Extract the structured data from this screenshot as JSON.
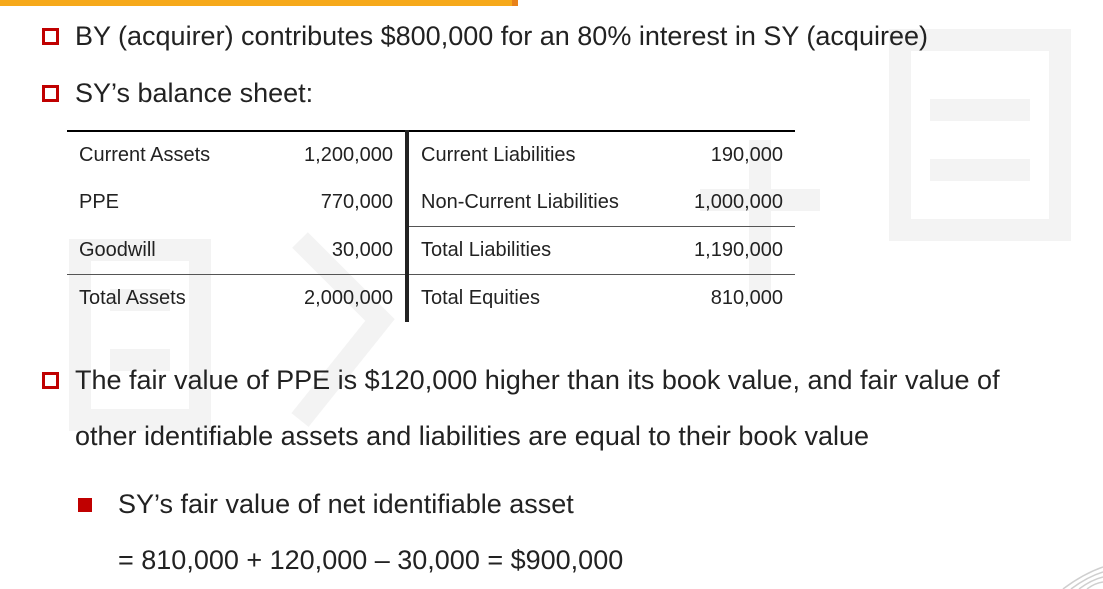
{
  "bullets": {
    "b1": "BY (acquirer) contributes $800,000 for an 80% interest in SY (acquiree)",
    "b2": "SY’s balance sheet:",
    "b3_line1": "The fair value of PPE is $120,000 higher than its book value, and fair value of",
    "b3_line2": "other identifiable assets and liabilities are equal to their book value",
    "sub1_label": "SY’s fair value of net identifiable asset",
    "sub1_calc": "= 810,000 + 120,000 – 30,000 = $900,000"
  },
  "balance_sheet": {
    "rows": [
      {
        "asset": "Current Assets",
        "asset_value": "1,200,000",
        "liab": "Current Liabilities",
        "liab_value": "190,000"
      },
      {
        "asset": "PPE",
        "asset_value": "770,000",
        "liab": "Non-Current Liabilities",
        "liab_value": "1,000,000"
      },
      {
        "asset": "Goodwill",
        "asset_value": "30,000",
        "liab": "Total Liabilities",
        "liab_value": "1,190,000"
      },
      {
        "asset": "Total Assets",
        "asset_value": "2,000,000",
        "liab": "Total Equities",
        "liab_value": "810,000"
      }
    ]
  },
  "colors": {
    "bullet_red": "#c00000",
    "top_bar_orange": "#f6a91a"
  }
}
